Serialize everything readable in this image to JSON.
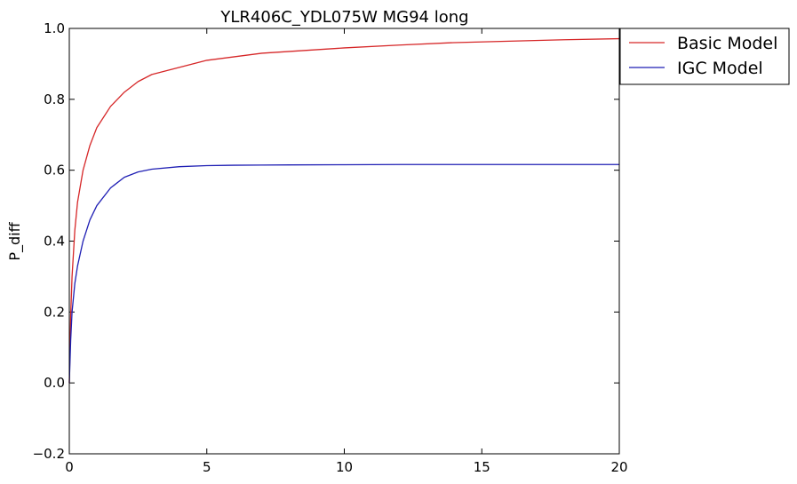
{
  "chart_data": {
    "type": "line",
    "title": "YLR406C_YDL075W MG94 long",
    "xlabel": "",
    "ylabel": "P_diff",
    "xlim": [
      0,
      20
    ],
    "ylim": [
      -0.2,
      1.0
    ],
    "xticks": [
      0,
      5,
      10,
      15,
      20
    ],
    "xtick_labels": [
      "0",
      "5",
      "10",
      "15",
      "20"
    ],
    "yticks": [
      -0.2,
      0.0,
      0.2,
      0.4,
      0.6,
      0.8,
      1.0
    ],
    "ytick_labels": [
      "−0.2",
      "0.0",
      "0.2",
      "0.4",
      "0.6",
      "0.8",
      "1.0"
    ],
    "grid": false,
    "legend_position": "outside-top-right",
    "x": [
      0,
      0.05,
      0.1,
      0.2,
      0.3,
      0.5,
      0.75,
      1,
      1.5,
      2,
      2.5,
      3,
      4,
      5,
      6,
      7,
      8,
      10,
      12,
      14,
      16,
      18,
      20
    ],
    "series": [
      {
        "name": "Basic Model",
        "color": "#d62728",
        "values": [
          0.0,
          0.19,
          0.3,
          0.43,
          0.51,
          0.6,
          0.67,
          0.72,
          0.78,
          0.82,
          0.85,
          0.87,
          0.89,
          0.91,
          0.92,
          0.93,
          0.935,
          0.945,
          0.953,
          0.96,
          0.964,
          0.968,
          0.971
        ]
      },
      {
        "name": "IGC Model",
        "color": "#1f1fb4",
        "values": [
          0.0,
          0.12,
          0.2,
          0.28,
          0.33,
          0.4,
          0.46,
          0.5,
          0.55,
          0.58,
          0.595,
          0.603,
          0.61,
          0.613,
          0.614,
          0.6145,
          0.615,
          0.6155,
          0.616,
          0.616,
          0.616,
          0.616,
          0.616
        ]
      }
    ]
  }
}
